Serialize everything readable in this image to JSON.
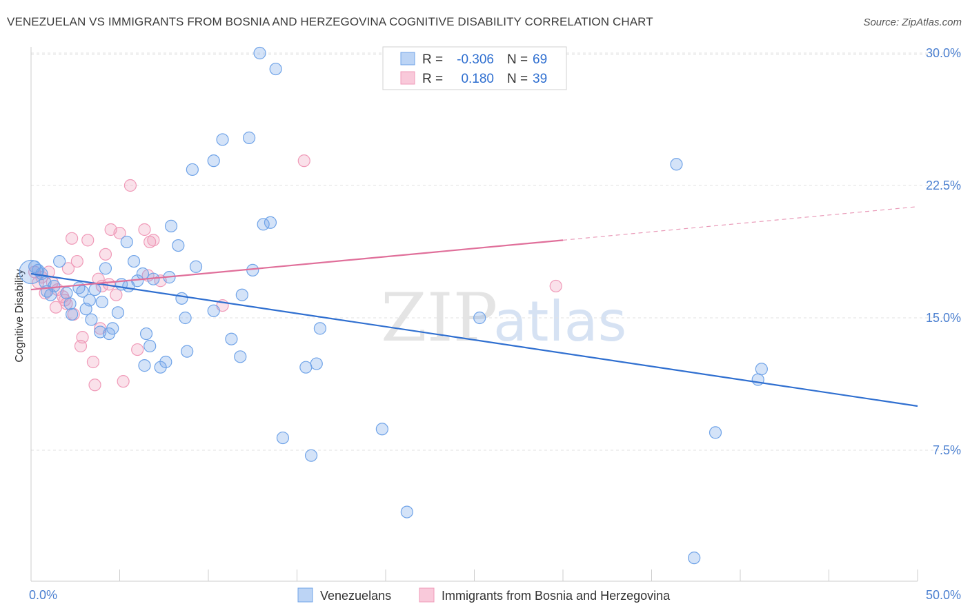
{
  "title": "VENEZUELAN VS IMMIGRANTS FROM BOSNIA AND HERZEGOVINA COGNITIVE DISABILITY CORRELATION CHART",
  "source": "Source: ZipAtlas.com",
  "watermark": {
    "zip": "ZIP",
    "atlas": "atlas"
  },
  "legend": {
    "rows": [
      {
        "r_label": "R =",
        "r_value": "-0.306",
        "n_label": "N =",
        "n_value": "69"
      },
      {
        "r_label": "R =",
        "r_value": "0.180",
        "n_label": "N =",
        "n_value": "39"
      }
    ]
  },
  "bottom_legend": [
    "Venezuelans",
    "Immigrants from Bosnia and Herzegovina"
  ],
  "chart_data": {
    "type": "scatter",
    "title": "VENEZUELAN VS IMMIGRANTS FROM BOSNIA AND HERZEGOVINA COGNITIVE DISABILITY CORRELATION CHART",
    "xlabel": "",
    "ylabel": "Cognitive Disability",
    "xlim": [
      0,
      50
    ],
    "ylim": [
      0,
      31
    ],
    "x_tick_labels": [
      "0.0%",
      "50.0%"
    ],
    "y_ticks": [
      7.5,
      15.0,
      22.5,
      30.0
    ],
    "y_tick_labels": [
      "7.5%",
      "15.0%",
      "22.5%",
      "30.0%"
    ],
    "grid": "horizontal dashed",
    "legend_placement": "top-center",
    "colors": {
      "venezuelans": "#6fa3e8",
      "bosnia": "#f09ab8",
      "venezuelans_line": "#2f6fd0",
      "bosnia_line": "#e06f9a"
    },
    "series": [
      {
        "name": "Venezuelans",
        "r": -0.306,
        "n": 69,
        "trend": {
          "x0": 0,
          "y0": 17.5,
          "x1": 50,
          "y1": 10.0
        },
        "points": [
          [
            0.2,
            17.9
          ],
          [
            0.4,
            17.7
          ],
          [
            0.6,
            17.5
          ],
          [
            0.8,
            17.0
          ],
          [
            0.9,
            16.5
          ],
          [
            1.1,
            16.3
          ],
          [
            1.3,
            16.8
          ],
          [
            1.6,
            18.2
          ],
          [
            2.0,
            16.4
          ],
          [
            2.2,
            15.8
          ],
          [
            2.3,
            15.2
          ],
          [
            2.7,
            16.7
          ],
          [
            2.9,
            16.5
          ],
          [
            3.1,
            15.5
          ],
          [
            3.3,
            16.0
          ],
          [
            3.4,
            14.9
          ],
          [
            3.6,
            16.6
          ],
          [
            3.9,
            14.2
          ],
          [
            4.0,
            15.9
          ],
          [
            4.2,
            17.8
          ],
          [
            4.4,
            14.1
          ],
          [
            4.6,
            14.4
          ],
          [
            4.9,
            15.3
          ],
          [
            5.1,
            16.9
          ],
          [
            5.4,
            19.3
          ],
          [
            5.5,
            16.8
          ],
          [
            5.8,
            18.2
          ],
          [
            6.0,
            17.1
          ],
          [
            6.3,
            17.5
          ],
          [
            6.4,
            12.3
          ],
          [
            6.5,
            14.1
          ],
          [
            6.7,
            13.4
          ],
          [
            6.9,
            17.2
          ],
          [
            7.3,
            12.2
          ],
          [
            7.6,
            12.5
          ],
          [
            7.8,
            17.3
          ],
          [
            7.9,
            20.2
          ],
          [
            8.3,
            19.1
          ],
          [
            8.5,
            16.1
          ],
          [
            8.7,
            15.0
          ],
          [
            8.8,
            13.1
          ],
          [
            9.1,
            23.4
          ],
          [
            9.3,
            17.9
          ],
          [
            10.3,
            23.9
          ],
          [
            10.3,
            15.4
          ],
          [
            10.8,
            25.1
          ],
          [
            11.3,
            13.8
          ],
          [
            11.8,
            12.8
          ],
          [
            11.9,
            16.3
          ],
          [
            12.3,
            25.2
          ],
          [
            12.5,
            17.7
          ],
          [
            12.9,
            30.0
          ],
          [
            13.1,
            20.3
          ],
          [
            13.5,
            20.4
          ],
          [
            13.8,
            29.1
          ],
          [
            14.2,
            8.2
          ],
          [
            15.5,
            12.2
          ],
          [
            15.8,
            7.2
          ],
          [
            16.1,
            12.4
          ],
          [
            16.3,
            14.4
          ],
          [
            19.8,
            8.7
          ],
          [
            21.2,
            4.0
          ],
          [
            25.3,
            15.0
          ],
          [
            36.4,
            23.7
          ],
          [
            37.4,
            1.4
          ],
          [
            38.6,
            8.5
          ],
          [
            41.0,
            11.5
          ],
          [
            41.2,
            12.1
          ],
          [
            0.0,
            17.6
          ]
        ]
      },
      {
        "name": "Immigrants from Bosnia and Herzegovina",
        "r": 0.18,
        "n": 39,
        "trend": {
          "x0": 0,
          "y0": 16.6,
          "x1": 30,
          "y1": 19.4
        },
        "trend_extension": {
          "x0": 30,
          "y0": 19.4,
          "x1": 50,
          "y1": 21.3
        },
        "points": [
          [
            0.2,
            17.6
          ],
          [
            0.4,
            17.0
          ],
          [
            0.6,
            17.3
          ],
          [
            0.8,
            16.4
          ],
          [
            1.0,
            17.6
          ],
          [
            1.2,
            17.0
          ],
          [
            1.4,
            15.6
          ],
          [
            1.5,
            16.6
          ],
          [
            1.8,
            16.2
          ],
          [
            1.9,
            16.0
          ],
          [
            2.0,
            15.8
          ],
          [
            2.1,
            17.8
          ],
          [
            2.3,
            19.5
          ],
          [
            2.4,
            15.2
          ],
          [
            2.6,
            18.2
          ],
          [
            2.8,
            13.4
          ],
          [
            2.9,
            13.9
          ],
          [
            3.2,
            19.4
          ],
          [
            3.5,
            12.5
          ],
          [
            3.6,
            11.2
          ],
          [
            3.8,
            17.2
          ],
          [
            3.9,
            14.4
          ],
          [
            4.0,
            16.8
          ],
          [
            4.2,
            18.6
          ],
          [
            4.4,
            16.9
          ],
          [
            4.5,
            20.0
          ],
          [
            4.8,
            16.3
          ],
          [
            5.0,
            19.8
          ],
          [
            5.2,
            11.4
          ],
          [
            5.6,
            22.5
          ],
          [
            6.0,
            13.2
          ],
          [
            6.4,
            20.0
          ],
          [
            6.6,
            17.4
          ],
          [
            6.7,
            19.3
          ],
          [
            6.9,
            19.4
          ],
          [
            7.3,
            17.1
          ],
          [
            10.8,
            15.7
          ],
          [
            15.4,
            23.9
          ],
          [
            29.6,
            16.8
          ]
        ]
      }
    ]
  }
}
